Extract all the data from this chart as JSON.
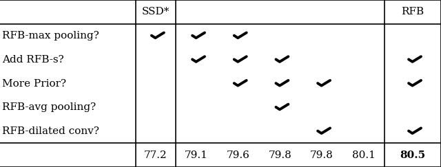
{
  "row_labels": [
    "RFB-max pooling?",
    "Add RFB-s?",
    "More Prior?",
    "RFB-avg pooling?",
    "RFB-dilated conv?"
  ],
  "col_headers_left": "SSD*",
  "col_headers_right": "RFB",
  "bottom_values": [
    "77.2",
    "79.1",
    "79.6",
    "79.8",
    "79.8",
    "80.1",
    "80.5"
  ],
  "checkmarks": [
    [
      1,
      1,
      1,
      0,
      0,
      0,
      0
    ],
    [
      0,
      1,
      1,
      1,
      0,
      0,
      1
    ],
    [
      0,
      0,
      1,
      1,
      1,
      0,
      1
    ],
    [
      0,
      0,
      0,
      1,
      0,
      0,
      0
    ],
    [
      0,
      0,
      0,
      0,
      1,
      0,
      1
    ]
  ],
  "background": "#ffffff",
  "text_color": "#000000",
  "fig_width": 6.4,
  "fig_height": 2.43,
  "dpi": 100,
  "fontsize": 11,
  "check_size": 13,
  "lw": 1.2
}
